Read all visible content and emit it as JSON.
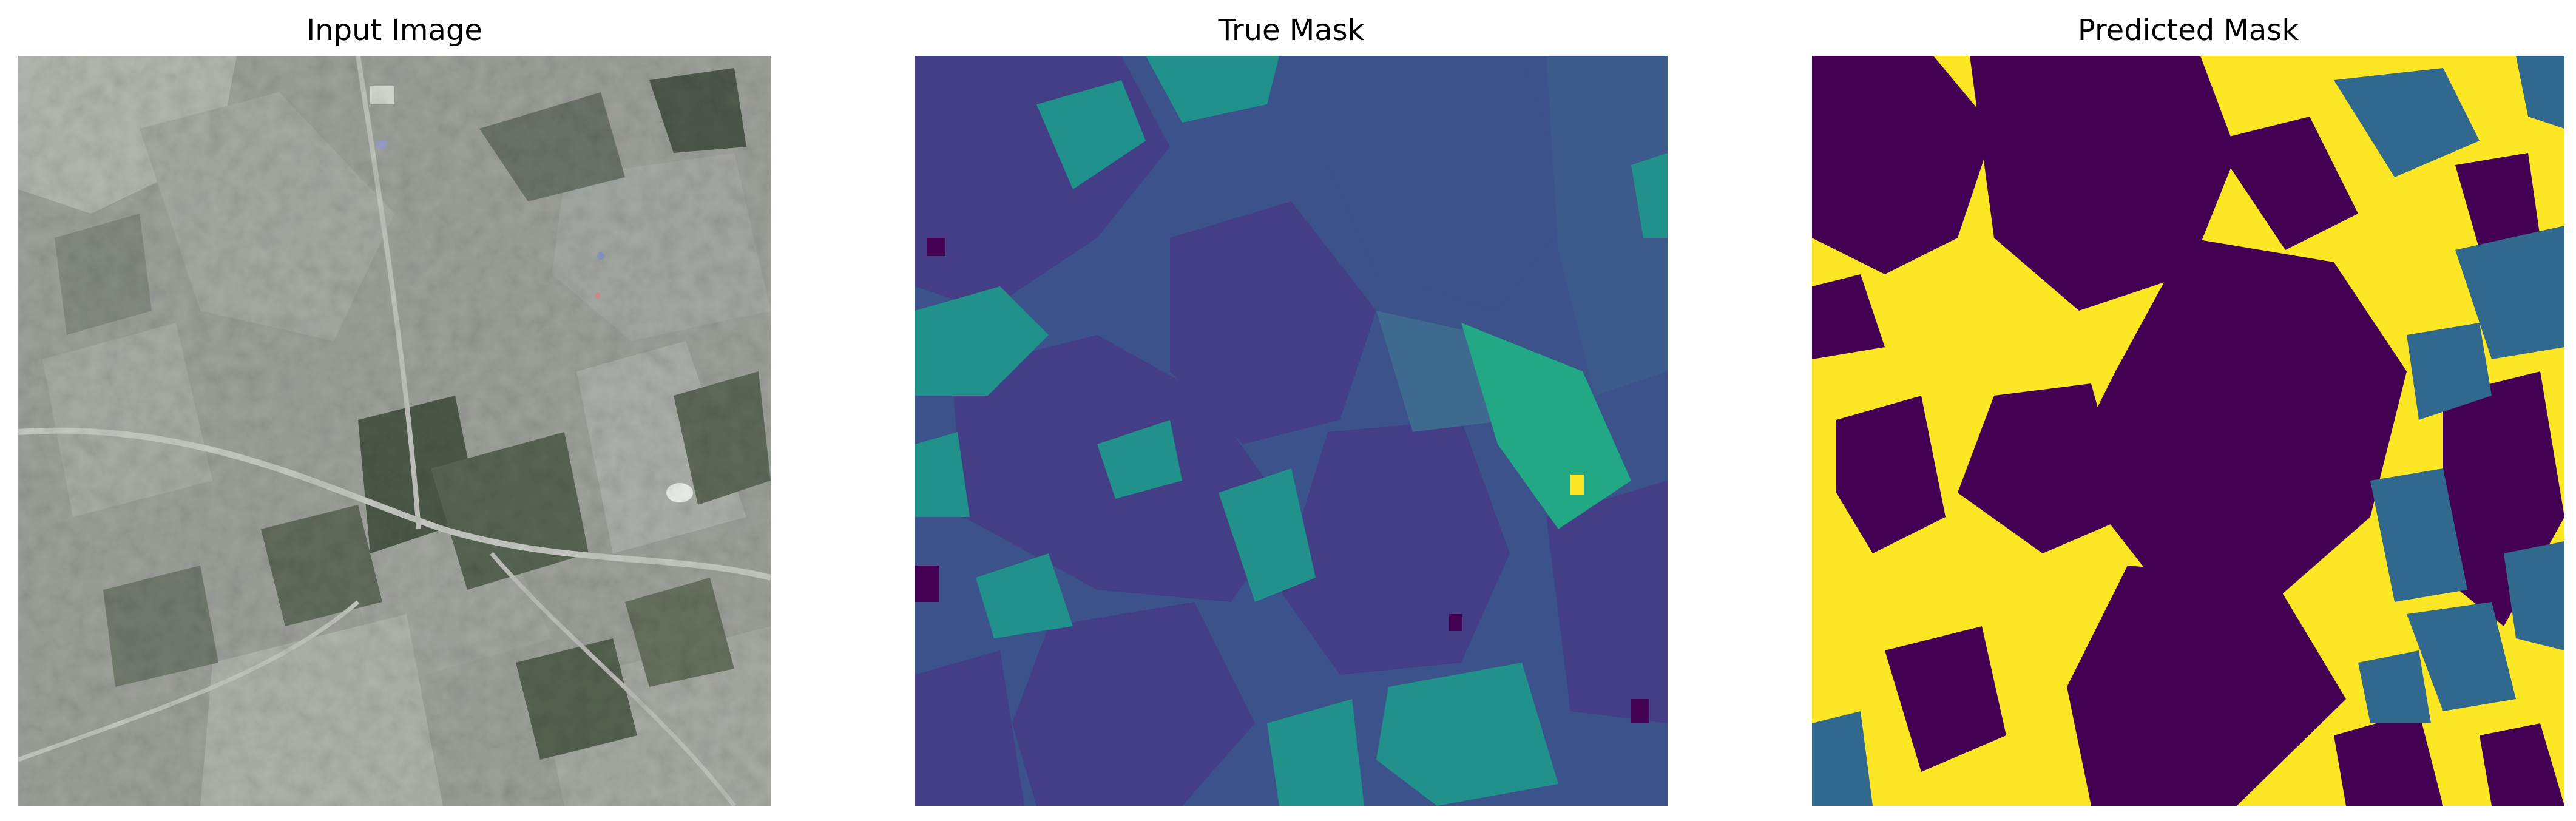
{
  "figure": {
    "panels": [
      {
        "title": "Input Image",
        "content": "satellite-photo-rural-fields"
      },
      {
        "title": "True Mask",
        "content": "segmentation-mask-viridis",
        "colors": [
          "#440154",
          "#3b528b",
          "#21918c",
          "#5ec962",
          "#fde725"
        ]
      },
      {
        "title": "Predicted Mask",
        "content": "segmentation-mask-viridis",
        "colors": [
          "#440154",
          "#31688e",
          "#fde725"
        ]
      }
    ]
  }
}
